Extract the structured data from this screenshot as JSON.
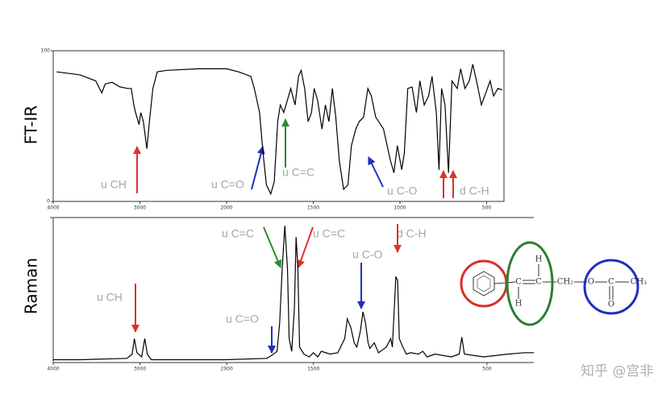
{
  "chart_data": [
    {
      "type": "line",
      "ylabel": "FT-IR",
      "color": "#000000",
      "x_scale_change": 2000,
      "xlim": [
        4000,
        400
      ],
      "xticks": [
        4000,
        3000,
        2000,
        1500,
        1000,
        500
      ],
      "ylim": [
        0,
        100
      ],
      "yticks": [
        0,
        100
      ],
      "x": [
        3960,
        3690,
        3510,
        3440,
        3400,
        3320,
        3230,
        3140,
        3100,
        3070,
        3050,
        3010,
        2990,
        2960,
        2920,
        2890,
        2850,
        2800,
        2690,
        2320,
        2000,
        1930,
        1860,
        1840,
        1810,
        1790,
        1770,
        1745,
        1725,
        1705,
        1690,
        1670,
        1650,
        1630,
        1605,
        1585,
        1570,
        1550,
        1530,
        1510,
        1495,
        1475,
        1450,
        1430,
        1410,
        1390,
        1370,
        1350,
        1325,
        1300,
        1280,
        1255,
        1235,
        1210,
        1185,
        1165,
        1140,
        1095,
        1055,
        1035,
        1015,
        990,
        975,
        955,
        930,
        905,
        885,
        860,
        835,
        815,
        790,
        775,
        760,
        740,
        720,
        700,
        670,
        650,
        625,
        600,
        580,
        555,
        530,
        505,
        480,
        460,
        435,
        410
      ],
      "values": [
        86,
        84,
        80,
        72,
        78,
        79,
        76,
        75,
        75,
        64,
        59,
        51,
        59,
        53,
        35,
        53,
        75,
        86,
        87,
        88,
        88,
        86,
        83,
        75,
        59,
        32,
        11,
        5,
        13,
        53,
        64,
        59,
        67,
        75,
        64,
        83,
        87,
        75,
        53,
        59,
        75,
        67,
        48,
        64,
        53,
        75,
        56,
        27,
        8,
        11,
        37,
        48,
        53,
        56,
        75,
        70,
        56,
        48,
        27,
        19,
        37,
        21,
        32,
        75,
        76,
        59,
        80,
        64,
        70,
        83,
        59,
        21,
        75,
        64,
        19,
        80,
        75,
        88,
        75,
        80,
        91,
        78,
        64,
        72,
        80,
        70,
        75,
        74
      ],
      "annotations": [
        "u CH",
        "u C=O",
        "u C=C",
        "u C-O",
        "d C-H"
      ]
    },
    {
      "type": "line",
      "ylabel": "Raman",
      "color": "#000000",
      "x_scale_change": 2000,
      "xlim": [
        4000,
        230
      ],
      "xticks": [
        4000,
        3000,
        2000,
        1500,
        500
      ],
      "ylim": [
        0,
        100
      ],
      "x": [
        4000,
        3690,
        3150,
        3090,
        3065,
        3035,
        2980,
        2945,
        2915,
        2870,
        2020,
        1770,
        1755,
        1730,
        1710,
        1695,
        1680,
        1665,
        1650,
        1640,
        1625,
        1610,
        1600,
        1590,
        1580,
        1555,
        1525,
        1500,
        1475,
        1455,
        1405,
        1360,
        1320,
        1305,
        1285,
        1265,
        1250,
        1230,
        1215,
        1200,
        1185,
        1175,
        1150,
        1125,
        1080,
        1055,
        1045,
        1025,
        1015,
        1005,
        985,
        965,
        940,
        895,
        870,
        845,
        800,
        705,
        660,
        645,
        630,
        520,
        380,
        285,
        230
      ],
      "values": [
        2,
        2,
        3,
        6,
        17,
        7,
        4,
        17,
        6,
        2,
        2,
        3,
        4,
        6,
        8,
        28,
        67,
        97,
        67,
        17,
        8,
        39,
        89,
        67,
        11,
        6,
        4,
        7,
        4,
        8,
        6,
        7,
        17,
        31,
        25,
        14,
        11,
        22,
        36,
        28,
        14,
        10,
        14,
        7,
        11,
        17,
        11,
        61,
        58,
        17,
        11,
        6,
        7,
        6,
        8,
        4,
        6,
        4,
        6,
        18,
        6,
        4,
        6,
        7,
        7
      ],
      "annotations": [
        "u CH",
        "u C=O",
        "u C=C",
        "u C=C",
        "u C-O",
        "d C-H"
      ]
    }
  ],
  "molecule": {
    "atoms": [
      "C",
      "C",
      "H",
      "H",
      "CH₂",
      "O",
      "C",
      "O",
      "CH₃"
    ]
  },
  "watermark": "知乎 @宫非"
}
